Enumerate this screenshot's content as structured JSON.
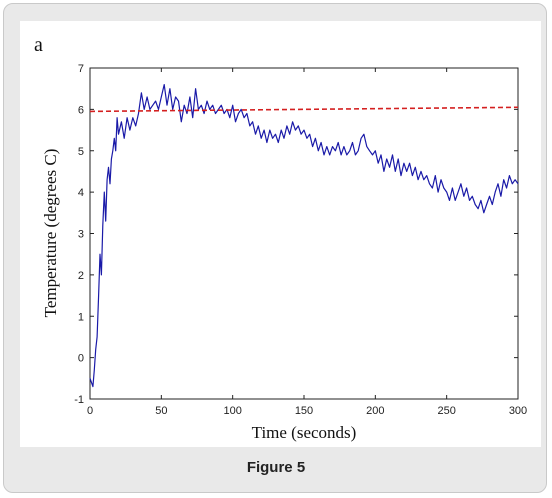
{
  "figure": {
    "caption": "Figure 5"
  },
  "chart_data": {
    "type": "line",
    "panel_label": "a",
    "title": "",
    "xlabel": "Time (seconds)",
    "ylabel": "Temperature (degrees C)",
    "xlim": [
      0,
      300
    ],
    "ylim": [
      -1,
      7
    ],
    "xticks": [
      0,
      50,
      100,
      150,
      200,
      250,
      300
    ],
    "yticks": [
      -1,
      0,
      1,
      2,
      3,
      4,
      5,
      6,
      7
    ],
    "grid": false,
    "legend": "none",
    "series": [
      {
        "style": "solid",
        "color": "#1a1aa8",
        "x": [
          0,
          2,
          3,
          4,
          5,
          6,
          7,
          8,
          9,
          10,
          11,
          12,
          13,
          14,
          15,
          16,
          17,
          18,
          19,
          20,
          22,
          24,
          26,
          28,
          30,
          32,
          34,
          36,
          38,
          40,
          42,
          44,
          46,
          48,
          50,
          52,
          54,
          56,
          58,
          60,
          62,
          64,
          66,
          68,
          70,
          72,
          74,
          76,
          78,
          80,
          82,
          84,
          86,
          88,
          90,
          92,
          94,
          96,
          98,
          100,
          102,
          104,
          106,
          108,
          110,
          112,
          114,
          116,
          118,
          120,
          122,
          124,
          126,
          128,
          130,
          132,
          134,
          136,
          138,
          140,
          142,
          144,
          146,
          148,
          150,
          152,
          154,
          156,
          158,
          160,
          162,
          164,
          166,
          168,
          170,
          172,
          174,
          176,
          178,
          180,
          182,
          184,
          186,
          188,
          190,
          192,
          194,
          196,
          198,
          200,
          202,
          204,
          206,
          208,
          210,
          212,
          214,
          216,
          218,
          220,
          222,
          224,
          226,
          228,
          230,
          232,
          234,
          236,
          238,
          240,
          242,
          244,
          246,
          248,
          250,
          252,
          254,
          256,
          258,
          260,
          262,
          264,
          266,
          268,
          270,
          272,
          274,
          276,
          278,
          280,
          282,
          284,
          286,
          288,
          290,
          292,
          294,
          296,
          298,
          300
        ],
        "y": [
          -0.5,
          -0.7,
          -0.3,
          0.2,
          0.5,
          1.5,
          2.5,
          2.0,
          3.2,
          4.0,
          3.3,
          4.3,
          4.6,
          4.2,
          4.8,
          5.0,
          5.3,
          5.0,
          5.8,
          5.4,
          5.7,
          5.3,
          5.8,
          5.5,
          5.8,
          5.6,
          5.9,
          6.4,
          6.0,
          6.3,
          6.0,
          6.1,
          6.2,
          6.0,
          6.3,
          6.6,
          6.1,
          6.5,
          6.0,
          6.3,
          6.2,
          5.7,
          6.1,
          5.9,
          6.3,
          5.8,
          6.5,
          6.0,
          6.1,
          5.9,
          6.2,
          6.0,
          6.1,
          5.9,
          6.0,
          6.1,
          5.9,
          6.0,
          5.8,
          6.1,
          5.7,
          5.9,
          6.0,
          5.8,
          5.9,
          5.6,
          5.7,
          5.4,
          5.6,
          5.3,
          5.5,
          5.2,
          5.5,
          5.3,
          5.4,
          5.2,
          5.5,
          5.3,
          5.6,
          5.4,
          5.7,
          5.5,
          5.6,
          5.4,
          5.5,
          5.3,
          5.4,
          5.1,
          5.3,
          5.0,
          5.2,
          4.9,
          5.1,
          4.9,
          5.1,
          5.0,
          5.2,
          4.9,
          5.1,
          4.9,
          5.0,
          5.2,
          4.9,
          5.0,
          5.3,
          5.4,
          5.1,
          5.0,
          4.9,
          5.0,
          4.7,
          4.9,
          4.5,
          4.8,
          4.6,
          4.9,
          4.5,
          4.8,
          4.4,
          4.7,
          4.5,
          4.7,
          4.4,
          4.6,
          4.3,
          4.5,
          4.3,
          4.4,
          4.2,
          4.1,
          4.4,
          4.0,
          4.3,
          4.1,
          4.0,
          3.8,
          4.1,
          3.8,
          4.0,
          4.2,
          3.9,
          4.1,
          3.8,
          3.9,
          3.7,
          3.6,
          3.8,
          3.5,
          3.7,
          3.9,
          3.7,
          4.0,
          4.2,
          3.9,
          4.3,
          4.1,
          4.4,
          4.2,
          4.3,
          4.2
        ]
      },
      {
        "style": "dashed",
        "color": "#d42020",
        "x": [
          0,
          300
        ],
        "y": [
          5.95,
          6.05
        ]
      }
    ]
  }
}
